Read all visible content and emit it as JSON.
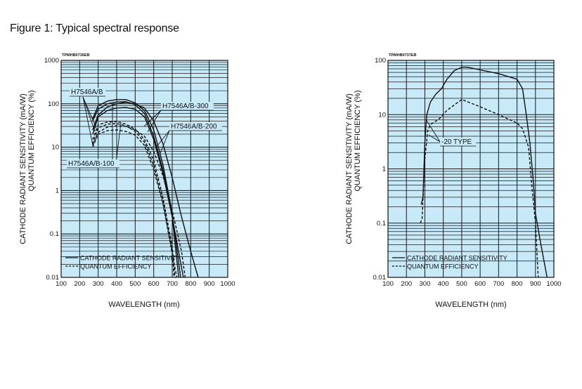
{
  "figure_title": "Figure 1: Typical spectral response",
  "colors": {
    "plot_background": "#c8e9f8",
    "grid": "#1a1a1a",
    "curve": "#111111"
  },
  "chart_data": [
    {
      "type": "line",
      "code": "TPMHB0736EB",
      "xlabel": "WAVELENGTH (nm)",
      "ylabel_line1": "CATHODE RADIANT SENSITIVITY (mA/W)",
      "ylabel_line2": "QUANTUM EFFICIENCY (%)",
      "xlim": [
        100,
        1000
      ],
      "ylim": [
        0.01,
        1000
      ],
      "yscale": "log",
      "grid": true,
      "xticks": [
        "100",
        "200",
        "300",
        "400",
        "500",
        "600",
        "700",
        "800",
        "900",
        "1000"
      ],
      "yticks": [
        "0.01",
        "0.1",
        "1",
        "10",
        "100",
        "1000"
      ],
      "legend": {
        "placement": "bottom-left",
        "entries": [
          {
            "label": "CATHODE RADIANT SENSITIVITY",
            "style": "solid"
          },
          {
            "label": "QUANTUM EFFICIENCY",
            "style": "dashed"
          }
        ]
      },
      "annotations": [
        "H7546A/B",
        "H7546A/B-300",
        "H7546A/B-200",
        "H7546A/B-100"
      ],
      "series": [
        {
          "name": "H7546A/B",
          "kind": "cathode radiant sensitivity",
          "style": "solid",
          "points": [
            [
              270,
              45
            ],
            [
              300,
              90
            ],
            [
              350,
              115
            ],
            [
              400,
              125
            ],
            [
              450,
              125
            ],
            [
              500,
              105
            ],
            [
              550,
              70
            ],
            [
              600,
              25
            ],
            [
              650,
              4
            ],
            [
              700,
              0.3
            ],
            [
              745,
              0.01
            ]
          ]
        },
        {
          "name": "H7546A/B-100",
          "kind": "cathode radiant sensitivity",
          "style": "solid",
          "points": [
            [
              270,
              40
            ],
            [
              300,
              75
            ],
            [
              350,
              100
            ],
            [
              400,
              110
            ],
            [
              450,
              112
            ],
            [
              500,
              95
            ],
            [
              550,
              60
            ],
            [
              600,
              18
            ],
            [
              650,
              3
            ],
            [
              700,
              0.25
            ],
            [
              735,
              0.01
            ]
          ]
        },
        {
          "name": "H7546A/B-200",
          "kind": "cathode radiant sensitivity",
          "style": "solid",
          "points": [
            [
              270,
              20
            ],
            [
              300,
              50
            ],
            [
              350,
              70
            ],
            [
              400,
              80
            ],
            [
              450,
              82
            ],
            [
              500,
              75
            ],
            [
              550,
              50
            ],
            [
              600,
              15
            ],
            [
              650,
              2.5
            ],
            [
              700,
              0.25
            ],
            [
              760,
              0.01
            ]
          ]
        },
        {
          "name": "H7546A/B-300",
          "kind": "cathode radiant sensitivity",
          "style": "solid",
          "points": [
            [
              270,
              25
            ],
            [
              300,
              55
            ],
            [
              350,
              85
            ],
            [
              400,
              100
            ],
            [
              450,
              108
            ],
            [
              500,
              100
            ],
            [
              550,
              80
            ],
            [
              600,
              40
            ],
            [
              650,
              12
            ],
            [
              700,
              2
            ],
            [
              750,
              0.25
            ],
            [
              800,
              0.04
            ],
            [
              840,
              0.01
            ]
          ]
        },
        {
          "name": "H7546A/B",
          "kind": "quantum efficiency",
          "style": "dashed",
          "points": [
            [
              270,
              15
            ],
            [
              300,
              33
            ],
            [
              350,
              38
            ],
            [
              400,
              39
            ],
            [
              450,
              34
            ],
            [
              500,
              26
            ],
            [
              550,
              15
            ],
            [
              600,
              5
            ],
            [
              650,
              0.7
            ],
            [
              700,
              0.05
            ],
            [
              715,
              0.01
            ]
          ]
        },
        {
          "name": "H7546A/B-100",
          "kind": "quantum efficiency",
          "style": "dashed",
          "points": [
            [
              270,
              12
            ],
            [
              300,
              28
            ],
            [
              350,
              34
            ],
            [
              400,
              35
            ],
            [
              450,
              31
            ],
            [
              500,
              23
            ],
            [
              550,
              13
            ],
            [
              600,
              3.8
            ],
            [
              650,
              0.55
            ],
            [
              700,
              0.04
            ],
            [
              710,
              0.01
            ]
          ]
        },
        {
          "name": "H7546A/B-200",
          "kind": "quantum efficiency",
          "style": "dashed",
          "points": [
            [
              270,
              10
            ],
            [
              300,
              20
            ],
            [
              350,
              24
            ],
            [
              400,
              25
            ],
            [
              450,
              23
            ],
            [
              500,
              19
            ],
            [
              550,
              11
            ],
            [
              600,
              3
            ],
            [
              650,
              0.5
            ],
            [
              700,
              0.035
            ],
            [
              725,
              0.01
            ]
          ]
        },
        {
          "name": "H7546A/B-300",
          "kind": "quantum efficiency",
          "style": "dashed",
          "points": [
            [
              270,
              11
            ],
            [
              300,
              22
            ],
            [
              350,
              29
            ],
            [
              400,
              31
            ],
            [
              450,
              30
            ],
            [
              500,
              25
            ],
            [
              550,
              18
            ],
            [
              600,
              8
            ],
            [
              650,
              2.2
            ],
            [
              700,
              0.35
            ],
            [
              750,
              0.04
            ],
            [
              770,
              0.01
            ]
          ]
        }
      ]
    },
    {
      "type": "line",
      "code": "TPMHB0737EB",
      "xlabel": "WAVELENGTH (nm)",
      "ylabel_line1": "CATHODE RADIANT SENSITIVITY (mA/W)",
      "ylabel_line2": "QUANTUM EFFICIENCY (%)",
      "xlim": [
        100,
        1000
      ],
      "ylim": [
        0.01,
        100
      ],
      "yscale": "log",
      "grid": true,
      "xticks": [
        "100",
        "200",
        "300",
        "400",
        "500",
        "600",
        "700",
        "800",
        "900",
        "1000"
      ],
      "yticks": [
        "0.01",
        "0.1",
        "1",
        "10",
        "100"
      ],
      "legend": {
        "placement": "bottom-left",
        "entries": [
          {
            "label": "CATHODE RADIANT SENSITIVITY",
            "style": "solid"
          },
          {
            "label": "QUANTUM EFFICIENCY",
            "style": "dashed"
          }
        ]
      },
      "annotations": [
        "-20 TYPE"
      ],
      "series": [
        {
          "name": "-20 TYPE",
          "kind": "cathode radiant sensitivity",
          "style": "solid",
          "points": [
            [
              280,
              0.22
            ],
            [
              290,
              0.3
            ],
            [
              300,
              3
            ],
            [
              310,
              10
            ],
            [
              330,
              17
            ],
            [
              360,
              24
            ],
            [
              390,
              30
            ],
            [
              420,
              45
            ],
            [
              460,
              65
            ],
            [
              500,
              75
            ],
            [
              530,
              75
            ],
            [
              600,
              67
            ],
            [
              700,
              57
            ],
            [
              800,
              45
            ],
            [
              830,
              30
            ],
            [
              850,
              10
            ],
            [
              870,
              3
            ],
            [
              890,
              0.5
            ],
            [
              900,
              0.15
            ],
            [
              930,
              0.04
            ],
            [
              963,
              0.01
            ]
          ]
        },
        {
          "name": "-20 TYPE",
          "kind": "quantum efficiency",
          "style": "dashed",
          "points": [
            [
              275,
              0.1
            ],
            [
              285,
              0.12
            ],
            [
              300,
              1.5
            ],
            [
              315,
              5
            ],
            [
              330,
              6.5
            ],
            [
              380,
              8.5
            ],
            [
              420,
              12
            ],
            [
              500,
              19
            ],
            [
              600,
              14
            ],
            [
              700,
              10
            ],
            [
              800,
              7
            ],
            [
              830,
              5.5
            ],
            [
              863,
              2.5
            ],
            [
              880,
              0.5
            ],
            [
              900,
              0.1
            ],
            [
              915,
              0.01
            ]
          ]
        }
      ]
    }
  ]
}
